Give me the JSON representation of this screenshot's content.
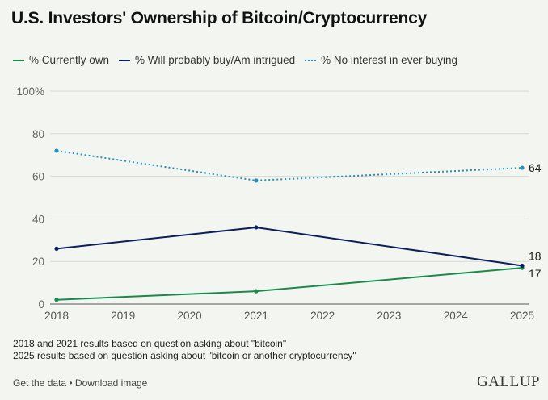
{
  "title": "U.S. Investors' Ownership of Bitcoin/Cryptocurrency",
  "legend": [
    {
      "label": "% Currently own",
      "color": "#1a8a4a",
      "style": "solid"
    },
    {
      "label": "% Will probably buy/Am intrigued",
      "color": "#0c1f5c",
      "style": "solid"
    },
    {
      "label": "% No interest in ever buying",
      "color": "#2a8fbf",
      "style": "dotted"
    }
  ],
  "chart_data": {
    "type": "line",
    "title": "U.S. Investors' Ownership of Bitcoin/Cryptocurrency",
    "xlabel": "",
    "ylabel": "",
    "x": [
      2018,
      2019,
      2020,
      2021,
      2022,
      2023,
      2024,
      2025
    ],
    "x_tick_labels": [
      "2018",
      "2019",
      "2020",
      "2021",
      "2022",
      "2023",
      "2024",
      "2025"
    ],
    "ylim": [
      0,
      100
    ],
    "y_ticks": [
      0,
      20,
      40,
      60,
      80,
      100
    ],
    "y_tick_labels": [
      "0",
      "20",
      "40",
      "60",
      "80",
      "100%"
    ],
    "grid": true,
    "legend_position": "top",
    "series": [
      {
        "name": "% Currently own",
        "color": "#1a8a4a",
        "dash": "solid",
        "points": [
          {
            "x": 2018,
            "y": 2
          },
          {
            "x": 2021,
            "y": 6
          },
          {
            "x": 2025,
            "y": 17
          }
        ],
        "end_label": "17"
      },
      {
        "name": "% Will probably buy/Am intrigued",
        "color": "#0c1f5c",
        "dash": "solid",
        "points": [
          {
            "x": 2018,
            "y": 26
          },
          {
            "x": 2021,
            "y": 36
          },
          {
            "x": 2025,
            "y": 18
          }
        ],
        "end_label": "18"
      },
      {
        "name": "% No interest in ever buying",
        "color": "#2a8fbf",
        "dash": "dotted",
        "points": [
          {
            "x": 2018,
            "y": 72
          },
          {
            "x": 2021,
            "y": 58
          },
          {
            "x": 2025,
            "y": 64
          }
        ],
        "end_label": "64"
      }
    ]
  },
  "footnotes": [
    "2018 and 2021 results based on question asking about \"bitcoin\"",
    "2025 results based on question asking about \"bitcoin or another cryptocurrency\""
  ],
  "footer": {
    "get_data": "Get the data",
    "separator": " • ",
    "download": "Download image",
    "brand": "GALLUP"
  }
}
